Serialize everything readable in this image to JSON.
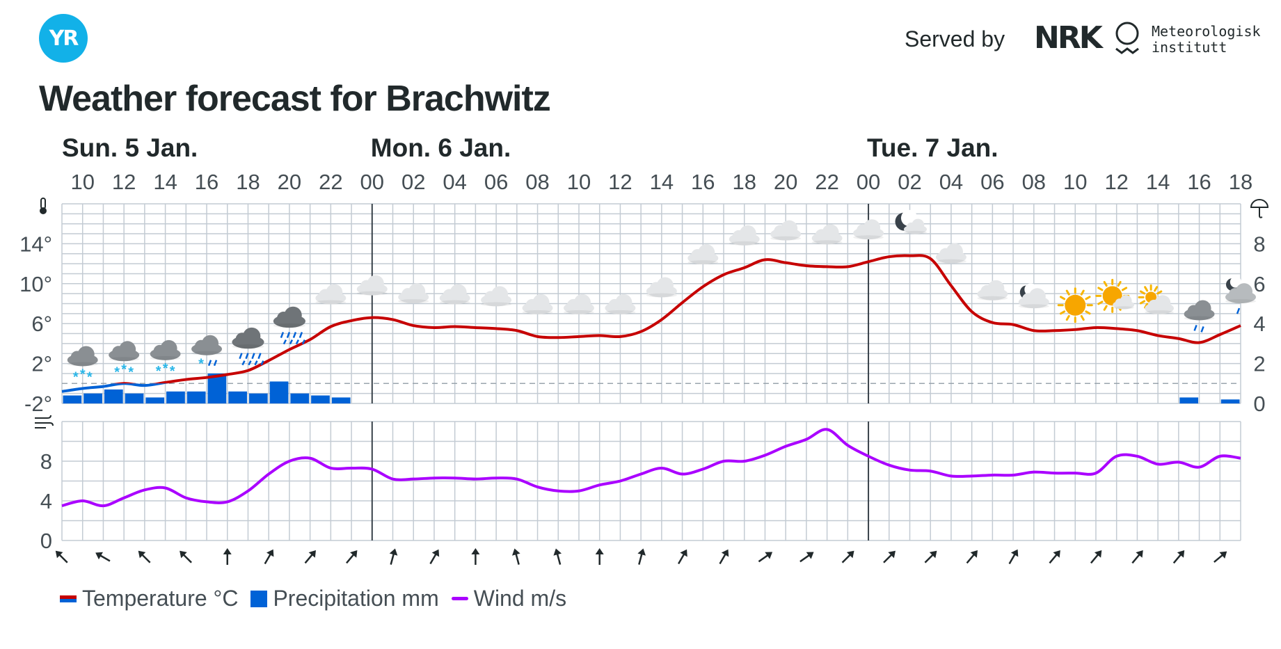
{
  "brand": {
    "logo_text": "YR",
    "served_by": "Served by",
    "nrk": "NRK",
    "met_line1": "Meteorologisk",
    "met_line2": "institutt"
  },
  "title": "Weather forecast for Brachwitz",
  "days": [
    {
      "label": "Sun. 5 Jan.",
      "start_index": 0
    },
    {
      "label": "Mon. 6 Jan.",
      "start_index": 7
    },
    {
      "label": "Tue. 7 Jan.",
      "start_index": 19
    }
  ],
  "colors": {
    "temp_above": "#c60000",
    "temp_below": "#0062d6",
    "precip": "#0062d6",
    "wind": "#aa00ff",
    "grid": "#c3cbd3",
    "day_line": "#39424a",
    "accent": "#12b1e8"
  },
  "legend": {
    "temperature": "Temperature °C",
    "precipitation": "Precipitation mm",
    "wind": "Wind m/s"
  },
  "icon_names": {
    "thermometer": "thermometer-icon",
    "umbrella": "umbrella-icon",
    "wind": "wind-icon"
  },
  "chart_data": [
    {
      "type": "line",
      "title": "",
      "x_unit": "hour",
      "x_start": "2025-01-05T09:00",
      "x_end": "2025-01-07T18:00",
      "tick_labels": [
        "10",
        "12",
        "14",
        "16",
        "18",
        "20",
        "22",
        "00",
        "02",
        "04",
        "06",
        "08",
        "10",
        "12",
        "14",
        "16",
        "18",
        "20",
        "22",
        "00",
        "02",
        "04",
        "06",
        "08",
        "10",
        "12",
        "14",
        "16",
        "18"
      ],
      "left_axis": {
        "unit": "°C",
        "ticks": [
          "14°",
          "10°",
          "6°",
          "2°",
          "-2°"
        ],
        "range": [
          -2,
          18
        ]
      },
      "right_axis": {
        "unit": "mm",
        "ticks": [
          "8",
          "6",
          "4",
          "2",
          "0"
        ],
        "range": [
          0,
          10
        ]
      },
      "grid": true,
      "series": [
        {
          "name": "Temperature °C",
          "kind": "line",
          "x": [
            "2025-01-05T09:00",
            "2025-01-05T10:00",
            "2025-01-05T11:00",
            "2025-01-05T12:00",
            "2025-01-05T13:00",
            "2025-01-05T14:00",
            "2025-01-05T15:00",
            "2025-01-05T16:00",
            "2025-01-05T17:00",
            "2025-01-05T18:00",
            "2025-01-05T19:00",
            "2025-01-05T20:00",
            "2025-01-05T21:00",
            "2025-01-05T22:00",
            "2025-01-05T23:00",
            "2025-01-06T00:00",
            "2025-01-06T01:00",
            "2025-01-06T02:00",
            "2025-01-06T03:00",
            "2025-01-06T04:00",
            "2025-01-06T05:00",
            "2025-01-06T06:00",
            "2025-01-06T07:00",
            "2025-01-06T08:00",
            "2025-01-06T09:00",
            "2025-01-06T10:00",
            "2025-01-06T11:00",
            "2025-01-06T12:00",
            "2025-01-06T13:00",
            "2025-01-06T14:00",
            "2025-01-06T15:00",
            "2025-01-06T16:00",
            "2025-01-06T17:00",
            "2025-01-06T18:00",
            "2025-01-06T19:00",
            "2025-01-06T20:00",
            "2025-01-06T21:00",
            "2025-01-06T22:00",
            "2025-01-06T23:00",
            "2025-01-07T00:00",
            "2025-01-07T01:00",
            "2025-01-07T02:00",
            "2025-01-07T03:00",
            "2025-01-07T04:00",
            "2025-01-07T05:00",
            "2025-01-07T06:00",
            "2025-01-07T07:00",
            "2025-01-07T08:00",
            "2025-01-07T09:00",
            "2025-01-07T10:00",
            "2025-01-07T11:00",
            "2025-01-07T12:00",
            "2025-01-07T13:00",
            "2025-01-07T14:00",
            "2025-01-07T15:00",
            "2025-01-07T16:00",
            "2025-01-07T17:00",
            "2025-01-07T18:00"
          ],
          "values": [
            -0.8,
            -0.5,
            -0.3,
            0,
            -0.2,
            0.1,
            0.4,
            0.6,
            0.9,
            1.3,
            2.3,
            3.4,
            4.4,
            5.7,
            6.3,
            6.6,
            6.4,
            5.8,
            5.6,
            5.7,
            5.6,
            5.5,
            5.3,
            4.7,
            4.6,
            4.7,
            4.8,
            4.7,
            5.2,
            6.4,
            8.1,
            9.7,
            10.9,
            11.6,
            12.4,
            12.1,
            11.8,
            11.7,
            11.7,
            12.2,
            12.7,
            12.8,
            12.5,
            9.8,
            7.2,
            6.1,
            5.9,
            5.3,
            5.3,
            5.4,
            5.6,
            5.5,
            5.3,
            4.8,
            4.5,
            4.1,
            4.9,
            5.8
          ]
        },
        {
          "name": "Precipitation mm",
          "kind": "bar",
          "x": [
            "2025-01-05T09:00",
            "2025-01-05T10:00",
            "2025-01-05T11:00",
            "2025-01-05T12:00",
            "2025-01-05T13:00",
            "2025-01-05T14:00",
            "2025-01-05T15:00",
            "2025-01-05T16:00",
            "2025-01-05T17:00",
            "2025-01-05T18:00",
            "2025-01-05T19:00",
            "2025-01-05T20:00",
            "2025-01-05T21:00",
            "2025-01-05T22:00",
            "2025-01-07T15:00",
            "2025-01-07T17:00"
          ],
          "values": [
            0.4,
            0.5,
            0.7,
            0.5,
            0.3,
            0.6,
            0.6,
            1.5,
            0.6,
            0.5,
            1.1,
            0.5,
            0.4,
            0.3,
            0.3,
            0.2
          ]
        }
      ],
      "weather_symbols": [
        {
          "time": "2025-01-05T10:00",
          "icon": "snow-showers-icon"
        },
        {
          "time": "2025-01-05T12:00",
          "icon": "snow-showers-icon"
        },
        {
          "time": "2025-01-05T14:00",
          "icon": "snow-showers-icon"
        },
        {
          "time": "2025-01-05T16:00",
          "icon": "sleet-icon"
        },
        {
          "time": "2025-01-05T18:00",
          "icon": "rain-icon"
        },
        {
          "time": "2025-01-05T20:00",
          "icon": "rain-icon"
        },
        {
          "time": "2025-01-05T22:00",
          "icon": "cloudy-icon"
        },
        {
          "time": "2025-01-06T00:00",
          "icon": "cloudy-icon"
        },
        {
          "time": "2025-01-06T02:00",
          "icon": "cloudy-icon"
        },
        {
          "time": "2025-01-06T04:00",
          "icon": "cloudy-icon"
        },
        {
          "time": "2025-01-06T06:00",
          "icon": "cloudy-icon"
        },
        {
          "time": "2025-01-06T08:00",
          "icon": "cloudy-icon"
        },
        {
          "time": "2025-01-06T10:00",
          "icon": "cloudy-icon"
        },
        {
          "time": "2025-01-06T12:00",
          "icon": "cloudy-icon"
        },
        {
          "time": "2025-01-06T14:00",
          "icon": "cloudy-icon"
        },
        {
          "time": "2025-01-06T16:00",
          "icon": "cloudy-icon"
        },
        {
          "time": "2025-01-06T18:00",
          "icon": "cloudy-icon"
        },
        {
          "time": "2025-01-06T20:00",
          "icon": "cloudy-icon"
        },
        {
          "time": "2025-01-06T22:00",
          "icon": "cloudy-icon"
        },
        {
          "time": "2025-01-07T00:00",
          "icon": "cloudy-icon"
        },
        {
          "time": "2025-01-07T02:00",
          "icon": "partly-cloudy-night-icon"
        },
        {
          "time": "2025-01-07T04:00",
          "icon": "cloudy-icon"
        },
        {
          "time": "2025-01-07T06:00",
          "icon": "cloudy-icon"
        },
        {
          "time": "2025-01-07T08:00",
          "icon": "cloudy-night-icon"
        },
        {
          "time": "2025-01-07T10:00",
          "icon": "clear-sky-icon"
        },
        {
          "time": "2025-01-07T12:00",
          "icon": "partly-cloudy-icon"
        },
        {
          "time": "2025-01-07T14:00",
          "icon": "fair-icon"
        },
        {
          "time": "2025-01-07T16:00",
          "icon": "light-rain-icon"
        },
        {
          "time": "2025-01-07T18:00",
          "icon": "light-rain-night-icon"
        }
      ]
    },
    {
      "type": "line",
      "title": "",
      "x_unit": "hour",
      "axis": {
        "unit": "m/s",
        "ticks": [
          "8",
          "4",
          "0"
        ],
        "range": [
          0,
          12
        ]
      },
      "grid": true,
      "series": [
        {
          "name": "Wind m/s",
          "x": [
            "2025-01-05T09:00",
            "2025-01-05T10:00",
            "2025-01-05T11:00",
            "2025-01-05T12:00",
            "2025-01-05T13:00",
            "2025-01-05T14:00",
            "2025-01-05T15:00",
            "2025-01-05T16:00",
            "2025-01-05T17:00",
            "2025-01-05T18:00",
            "2025-01-05T19:00",
            "2025-01-05T20:00",
            "2025-01-05T21:00",
            "2025-01-05T22:00",
            "2025-01-05T23:00",
            "2025-01-06T00:00",
            "2025-01-06T01:00",
            "2025-01-06T02:00",
            "2025-01-06T03:00",
            "2025-01-06T04:00",
            "2025-01-06T05:00",
            "2025-01-06T06:00",
            "2025-01-06T07:00",
            "2025-01-06T08:00",
            "2025-01-06T09:00",
            "2025-01-06T10:00",
            "2025-01-06T11:00",
            "2025-01-06T12:00",
            "2025-01-06T13:00",
            "2025-01-06T14:00",
            "2025-01-06T15:00",
            "2025-01-06T16:00",
            "2025-01-06T17:00",
            "2025-01-06T18:00",
            "2025-01-06T19:00",
            "2025-01-06T20:00",
            "2025-01-06T21:00",
            "2025-01-06T22:00",
            "2025-01-06T23:00",
            "2025-01-07T00:00",
            "2025-01-07T01:00",
            "2025-01-07T02:00",
            "2025-01-07T03:00",
            "2025-01-07T04:00",
            "2025-01-07T05:00",
            "2025-01-07T06:00",
            "2025-01-07T07:00",
            "2025-01-07T08:00",
            "2025-01-07T09:00",
            "2025-01-07T10:00",
            "2025-01-07T11:00",
            "2025-01-07T12:00",
            "2025-01-07T13:00",
            "2025-01-07T14:00",
            "2025-01-07T15:00",
            "2025-01-07T16:00",
            "2025-01-07T17:00",
            "2025-01-07T18:00"
          ],
          "values": [
            3.5,
            4.0,
            3.5,
            4.3,
            5.1,
            5.3,
            4.3,
            3.9,
            3.9,
            5.0,
            6.7,
            8.0,
            8.3,
            7.3,
            7.3,
            7.2,
            6.2,
            6.2,
            6.3,
            6.3,
            6.2,
            6.3,
            6.2,
            5.4,
            5.0,
            5.0,
            5.6,
            6.0,
            6.7,
            7.3,
            6.7,
            7.2,
            8.0,
            8.0,
            8.6,
            9.5,
            10.2,
            11.2,
            9.6,
            8.5,
            7.6,
            7.1,
            7.0,
            6.5,
            6.5,
            6.6,
            6.6,
            6.9,
            6.8,
            6.8,
            6.8,
            8.5,
            8.5,
            7.7,
            7.9,
            7.4,
            8.5,
            8.3
          ]
        }
      ],
      "wind_directions_deg": [
        315,
        300,
        315,
        315,
        0,
        30,
        40,
        40,
        15,
        30,
        0,
        345,
        345,
        0,
        15,
        30,
        30,
        55,
        55,
        45,
        45,
        45,
        40,
        30,
        40,
        40,
        40,
        40,
        50
      ]
    }
  ]
}
